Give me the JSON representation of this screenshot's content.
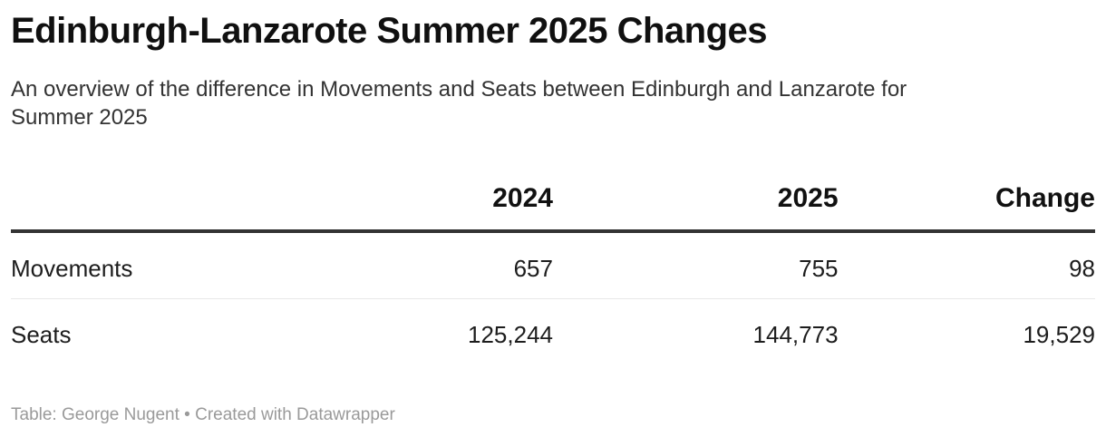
{
  "header": {
    "title": "Edinburgh-Lanzarote Summer 2025 Changes",
    "subtitle": "An overview of the difference in Movements and Seats between Edinburgh and Lanzarote for Summer 2025"
  },
  "table": {
    "columns": [
      "",
      "2024",
      "2025",
      "Change"
    ],
    "rows": [
      {
        "label": "Movements",
        "values": [
          "657",
          "755",
          "98"
        ]
      },
      {
        "label": "Seats",
        "values": [
          "125,244",
          "144,773",
          "19,529"
        ]
      }
    ]
  },
  "footer": {
    "credit": "Table: George Nugent • Created with Datawrapper"
  },
  "colors": {
    "background": "#ffffff",
    "title_text": "#101010",
    "subtitle_text": "#333333",
    "body_text": "#1d1d1d",
    "header_rule": "#333333",
    "row_divider": "#e8e8e8",
    "footer_text": "#9a9a9a"
  },
  "chart_data": {
    "type": "table",
    "title": "Edinburgh-Lanzarote Summer 2025 Changes",
    "subtitle": "An overview of the difference in Movements and Seats between Edinburgh and Lanzarote for Summer 2025",
    "columns": [
      "",
      "2024",
      "2025",
      "Change"
    ],
    "rows": [
      [
        "Movements",
        657,
        755,
        98
      ],
      [
        "Seats",
        125244,
        144773,
        19529
      ]
    ],
    "notes": "numeric columns right-aligned; header bold with thick dark bottom rule; light divider between body rows; credit line bottom-left"
  }
}
